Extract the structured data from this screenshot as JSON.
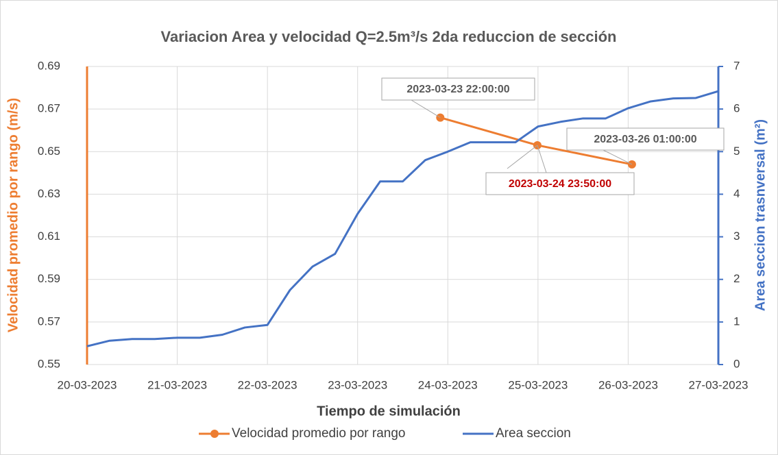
{
  "chart_data": {
    "type": "line",
    "title": "Variacion Area y velocidad Q=2.5m³/s 2da reduccion de sección",
    "x_label": "Tiempo de simulación",
    "y_label": "Velocidad promedio por rango (m/s)",
    "y2_label": "Area seccion trasnversal (m²)",
    "xlim": [
      "20-03-2023",
      "27-03-2023"
    ],
    "xticks": [
      "20-03-2023",
      "21-03-2023",
      "22-03-2023",
      "23-03-2023",
      "24-03-2023",
      "25-03-2023",
      "26-03-2023",
      "27-03-2023"
    ],
    "ylim": [
      0.55,
      0.69
    ],
    "yticks": [
      0.55,
      0.57,
      0.59,
      0.61,
      0.63,
      0.65,
      0.67,
      0.69
    ],
    "y2lim": [
      0,
      7
    ],
    "y2ticks": [
      0,
      1,
      2,
      3,
      4,
      5,
      6,
      7
    ],
    "grid": true,
    "legend": "bottom",
    "series": [
      {
        "name": "Velocidad promedio por rango",
        "color": "#ed7d31",
        "axis": "y",
        "markers": true,
        "x": [
          "2023-03-23 22:00:00",
          "2023-03-24 23:50:00",
          "2023-03-26 01:00:00"
        ],
        "values": [
          0.666,
          0.653,
          0.644
        ]
      },
      {
        "name": "Area seccion",
        "color": "#4472c4",
        "axis": "y2",
        "markers": false,
        "x": [
          "2023-03-20 00:00",
          "2023-03-20 06:00",
          "2023-03-20 12:00",
          "2023-03-20 18:00",
          "2023-03-21 00:00",
          "2023-03-21 06:00",
          "2023-03-21 12:00",
          "2023-03-21 18:00",
          "2023-03-22 00:00",
          "2023-03-22 06:00",
          "2023-03-22 12:00",
          "2023-03-22 18:00",
          "2023-03-23 00:00",
          "2023-03-23 06:00",
          "2023-03-23 12:00",
          "2023-03-23 18:00",
          "2023-03-24 00:00",
          "2023-03-24 06:00",
          "2023-03-24 12:00",
          "2023-03-24 18:00",
          "2023-03-25 00:00",
          "2023-03-25 06:00",
          "2023-03-25 12:00",
          "2023-03-25 18:00",
          "2023-03-26 00:00",
          "2023-03-26 06:00",
          "2023-03-26 12:00",
          "2023-03-26 18:00",
          "2023-03-27 00:00"
        ],
        "values": [
          0.43,
          0.56,
          0.6,
          0.6,
          0.63,
          0.63,
          0.7,
          0.87,
          0.93,
          1.75,
          2.3,
          2.6,
          3.54,
          4.3,
          4.3,
          4.8,
          5.0,
          5.22,
          5.22,
          5.22,
          5.59,
          5.7,
          5.78,
          5.78,
          6.02,
          6.18,
          6.25,
          6.26,
          6.42
        ]
      }
    ],
    "annotations": [
      {
        "text": "2023-03-23 22:00:00",
        "color": "#595959"
      },
      {
        "text": "2023-03-24 23:50:00",
        "color": "#c00000"
      },
      {
        "text": "2023-03-26 01:00:00",
        "color": "#595959"
      }
    ]
  }
}
